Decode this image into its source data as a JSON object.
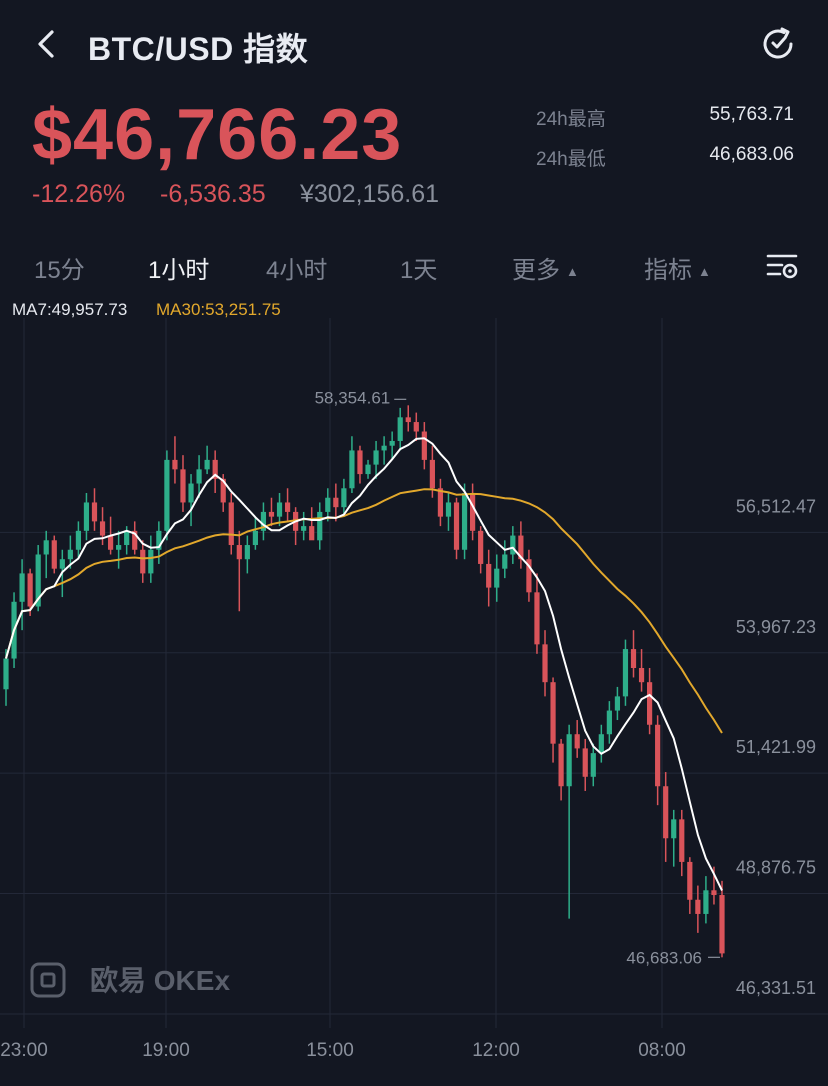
{
  "header": {
    "title": "BTC/USD 指数"
  },
  "ticker": {
    "price": "$46,766.23",
    "change_pct": "-12.26%",
    "change_abs": "-6,536.35",
    "price_cny": "¥302,156.61",
    "high_label": "24h最高",
    "high_value": "55,763.71",
    "low_label": "24h最低",
    "low_value": "46,683.06",
    "down_color": "#d9545a",
    "up_color": "#2eae8a"
  },
  "tabs": [
    {
      "label": "15分",
      "active": false
    },
    {
      "label": "1小时",
      "active": true
    },
    {
      "label": "4小时",
      "active": false
    },
    {
      "label": "1天",
      "active": false
    },
    {
      "label": "更多",
      "active": false,
      "dropdown": true
    },
    {
      "label": "指标",
      "active": false,
      "dropdown": true
    }
  ],
  "indicators": {
    "ma7": "MA7:49,957.73",
    "ma30": "MA30:53,251.75",
    "ma7_color": "#ffffff",
    "ma30_color": "#e2a82c"
  },
  "watermark": "欧易 OKEx",
  "chart_data": {
    "type": "candlestick",
    "x_tick_labels": [
      "23:00",
      "19:00",
      "15:00",
      "12:00",
      "08:00"
    ],
    "y_tick_labels": [
      "56,512.47",
      "53,967.23",
      "51,421.99",
      "48,876.75",
      "46,331.51"
    ],
    "y_ticks": [
      56512.47,
      53967.23,
      51421.99,
      48876.75,
      46331.51
    ],
    "ylim": [
      45400,
      60200
    ],
    "max_label": "58,354.61",
    "min_label": "46,683.06",
    "grid": true,
    "candles": [
      [
        52350,
        53200,
        52000,
        53000
      ],
      [
        53000,
        54400,
        52800,
        54200
      ],
      [
        54200,
        55100,
        53600,
        54800
      ],
      [
        54800,
        54900,
        53900,
        54100
      ],
      [
        54100,
        55400,
        54000,
        55200
      ],
      [
        55200,
        55700,
        54700,
        55500
      ],
      [
        55500,
        55600,
        54800,
        54900
      ],
      [
        54900,
        55300,
        54300,
        55100
      ],
      [
        55100,
        55600,
        54900,
        55300
      ],
      [
        55300,
        55900,
        55100,
        55700
      ],
      [
        55700,
        56500,
        55500,
        56300
      ],
      [
        56300,
        56600,
        55700,
        55900
      ],
      [
        55900,
        56200,
        55400,
        55600
      ],
      [
        55600,
        56000,
        55200,
        55300
      ],
      [
        55300,
        55700,
        54900,
        55400
      ],
      [
        55400,
        55800,
        55200,
        55700
      ],
      [
        55700,
        55900,
        55200,
        55300
      ],
      [
        55300,
        55500,
        54600,
        54800
      ],
      [
        54800,
        55600,
        54600,
        55300
      ],
      [
        55300,
        55900,
        55000,
        55700
      ],
      [
        55700,
        57400,
        55500,
        57200
      ],
      [
        57200,
        57700,
        56700,
        57000
      ],
      [
        57000,
        57300,
        56100,
        56300
      ],
      [
        56300,
        56900,
        55800,
        56700
      ],
      [
        56700,
        57300,
        56400,
        57000
      ],
      [
        57000,
        57500,
        56900,
        57200
      ],
      [
        57200,
        57400,
        56500,
        56800
      ],
      [
        56800,
        56900,
        56100,
        56300
      ],
      [
        56300,
        56500,
        55200,
        55400
      ],
      [
        55400,
        55700,
        54000,
        55100
      ],
      [
        55100,
        55600,
        54800,
        55400
      ],
      [
        55400,
        56000,
        55300,
        55700
      ],
      [
        55700,
        56300,
        55500,
        56100
      ],
      [
        56100,
        56400,
        55800,
        56000
      ],
      [
        56000,
        56500,
        55800,
        56300
      ],
      [
        56300,
        56600,
        55900,
        56100
      ],
      [
        56100,
        56200,
        55400,
        55700
      ],
      [
        55700,
        56100,
        55500,
        55800
      ],
      [
        55800,
        56200,
        55600,
        55500
      ],
      [
        55500,
        56300,
        55300,
        56100
      ],
      [
        56100,
        56600,
        55900,
        56400
      ],
      [
        56400,
        56700,
        55900,
        56200
      ],
      [
        56200,
        56800,
        56000,
        56600
      ],
      [
        56600,
        57700,
        56500,
        57400
      ],
      [
        57400,
        57500,
        56700,
        56900
      ],
      [
        56900,
        57200,
        56800,
        57100
      ],
      [
        57100,
        57600,
        56800,
        57400
      ],
      [
        57400,
        57700,
        57100,
        57500
      ],
      [
        57500,
        57800,
        57200,
        57600
      ],
      [
        57600,
        58300,
        57400,
        58100
      ],
      [
        58100,
        58354,
        57800,
        58000
      ],
      [
        58000,
        58200,
        57600,
        57800
      ],
      [
        57800,
        58000,
        57000,
        57200
      ],
      [
        57200,
        57500,
        56400,
        56600
      ],
      [
        56600,
        56800,
        55800,
        56000
      ],
      [
        56000,
        56500,
        55700,
        56300
      ],
      [
        56300,
        56400,
        55100,
        55300
      ],
      [
        55300,
        56700,
        55100,
        56500
      ],
      [
        56500,
        56700,
        55500,
        55700
      ],
      [
        55700,
        55800,
        54800,
        55000
      ],
      [
        55000,
        55300,
        54100,
        54500
      ],
      [
        54500,
        55200,
        54200,
        54900
      ],
      [
        54900,
        55500,
        54700,
        55200
      ],
      [
        55200,
        55800,
        55000,
        55600
      ],
      [
        55600,
        55900,
        54900,
        55100
      ],
      [
        55100,
        55300,
        54200,
        54400
      ],
      [
        54400,
        54800,
        53100,
        53300
      ],
      [
        53300,
        53600,
        52200,
        52500
      ],
      [
        52500,
        52600,
        50800,
        51200
      ],
      [
        51200,
        51300,
        50000,
        50300
      ],
      [
        50300,
        51600,
        47500,
        51400
      ],
      [
        51400,
        51700,
        50900,
        51100
      ],
      [
        51100,
        51300,
        50200,
        50500
      ],
      [
        50500,
        51200,
        50300,
        51000
      ],
      [
        51000,
        51600,
        50800,
        51400
      ],
      [
        51400,
        52100,
        51200,
        51900
      ],
      [
        51900,
        52400,
        51700,
        52200
      ],
      [
        52200,
        53400,
        52000,
        53200
      ],
      [
        53200,
        53600,
        52600,
        52800
      ],
      [
        52800,
        53200,
        52300,
        52500
      ],
      [
        52500,
        52800,
        51400,
        51600
      ],
      [
        51600,
        51800,
        49900,
        50300
      ],
      [
        50300,
        50600,
        48700,
        49200
      ],
      [
        49200,
        49800,
        48600,
        49600
      ],
      [
        49600,
        49800,
        48400,
        48700
      ],
      [
        48700,
        48800,
        47600,
        47900
      ],
      [
        47900,
        48200,
        47200,
        47600
      ],
      [
        47600,
        48400,
        47400,
        48100
      ],
      [
        48100,
        48600,
        47800,
        48000
      ],
      [
        48000,
        48300,
        46683,
        46766
      ]
    ]
  }
}
